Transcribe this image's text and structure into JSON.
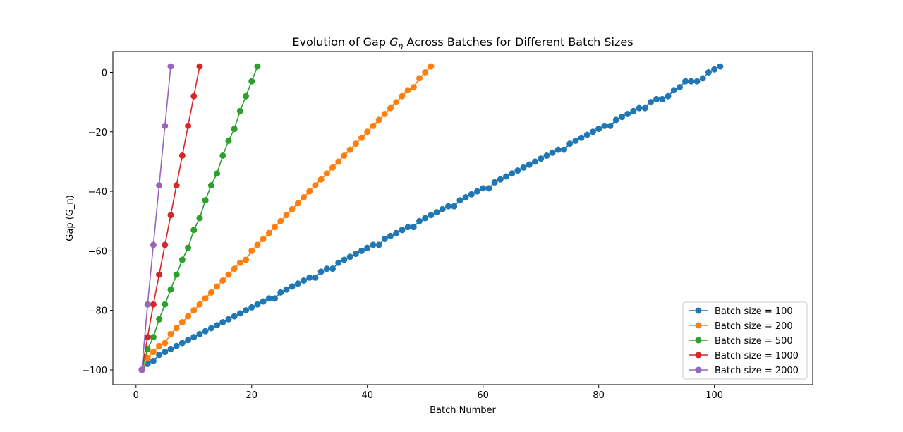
{
  "chart_data": {
    "type": "line",
    "title_prefix": "Evolution of Gap ",
    "title_var": "G",
    "title_sub": "n",
    "title_suffix": " Across Batches for Different Batch Sizes",
    "xlabel": "Batch Number",
    "ylabel": "Gap (G_n)",
    "xlim": [
      -4,
      117
    ],
    "ylim": [
      -105,
      7
    ],
    "xticks": [
      0,
      20,
      40,
      60,
      80,
      100
    ],
    "yticks": [
      0,
      -20,
      -40,
      -60,
      -80,
      -100
    ],
    "xtick_labels": [
      "0",
      "20",
      "40",
      "60",
      "80",
      "100"
    ],
    "ytick_labels": [
      "0",
      "−20",
      "−40",
      "−60",
      "−80",
      "−100"
    ],
    "grid": false,
    "legend_position": "lower-right",
    "series": [
      {
        "name": "Batch size = 100",
        "color": "#1f77b4",
        "x": [
          1,
          2,
          3,
          4,
          5,
          6,
          7,
          8,
          9,
          10,
          11,
          12,
          13,
          14,
          15,
          16,
          17,
          18,
          19,
          20,
          21,
          22,
          23,
          24,
          25,
          26,
          27,
          28,
          29,
          30,
          31,
          32,
          33,
          34,
          35,
          36,
          37,
          38,
          39,
          40,
          41,
          42,
          43,
          44,
          45,
          46,
          47,
          48,
          49,
          50,
          51,
          52,
          53,
          54,
          55,
          56,
          57,
          58,
          59,
          60,
          61,
          62,
          63,
          64,
          65,
          66,
          67,
          68,
          69,
          70,
          71,
          72,
          73,
          74,
          75,
          76,
          77,
          78,
          79,
          80,
          81,
          82,
          83,
          84,
          85,
          86,
          87,
          88,
          89,
          90,
          91,
          92,
          93,
          94,
          95,
          96,
          97,
          98,
          99,
          100,
          101
        ],
        "y": [
          -100,
          -98,
          -97,
          -95,
          -94,
          -93,
          -92,
          -91,
          -90,
          -89,
          -88,
          -87,
          -86,
          -85,
          -84,
          -83,
          -82,
          -81,
          -80,
          -79,
          -78,
          -77,
          -76,
          -76,
          -74,
          -73,
          -72,
          -71,
          -70,
          -69,
          -69,
          -67,
          -66,
          -66,
          -64,
          -63,
          -62,
          -61,
          -60,
          -59,
          -58,
          -58,
          -56,
          -55,
          -54,
          -53,
          -52,
          -52,
          -50,
          -49,
          -48,
          -47,
          -46,
          -45,
          -45,
          -43,
          -42,
          -41,
          -40,
          -39,
          -39,
          -37,
          -36,
          -35,
          -34,
          -33,
          -32,
          -31,
          -30,
          -29,
          -28,
          -27,
          -26,
          -26,
          -24,
          -23,
          -22,
          -21,
          -20,
          -19,
          -18,
          -18,
          -16,
          -15,
          -14,
          -13,
          -12,
          -12,
          -10,
          -9,
          -9,
          -8,
          -6,
          -5,
          -3,
          -3,
          -3,
          -2,
          0,
          1,
          2
        ]
      },
      {
        "name": "Batch size = 200",
        "color": "#ff7f0e",
        "x": [
          1,
          2,
          3,
          4,
          5,
          6,
          7,
          8,
          9,
          10,
          11,
          12,
          13,
          14,
          15,
          16,
          17,
          18,
          19,
          20,
          21,
          22,
          23,
          24,
          25,
          26,
          27,
          28,
          29,
          30,
          31,
          32,
          33,
          34,
          35,
          36,
          37,
          38,
          39,
          40,
          41,
          42,
          43,
          44,
          45,
          46,
          47,
          48,
          49,
          50,
          51
        ],
        "y": [
          -100,
          -96,
          -94,
          -92,
          -91,
          -88,
          -86,
          -84,
          -82,
          -80,
          -78,
          -76,
          -74,
          -72,
          -70,
          -68,
          -66,
          -64,
          -63,
          -60,
          -58,
          -56,
          -54,
          -52,
          -50,
          -48,
          -46,
          -44,
          -42,
          -40,
          -38,
          -36,
          -34,
          -32,
          -30,
          -28,
          -26,
          -24,
          -22,
          -20,
          -18,
          -16,
          -14,
          -12,
          -10,
          -8,
          -6,
          -5,
          -2,
          0,
          2
        ]
      },
      {
        "name": "Batch size = 500",
        "color": "#2ca02c",
        "x": [
          1,
          2,
          3,
          4,
          5,
          6,
          7,
          8,
          9,
          10,
          11,
          12,
          13,
          14,
          15,
          16,
          17,
          18,
          19,
          20,
          21
        ],
        "y": [
          -100,
          -93,
          -89,
          -83,
          -78,
          -73,
          -68,
          -63,
          -59,
          -53,
          -49,
          -43,
          -38,
          -34,
          -28,
          -23,
          -19,
          -13,
          -8,
          -3,
          2
        ]
      },
      {
        "name": "Batch size = 1000",
        "color": "#d62728",
        "x": [
          1,
          2,
          3,
          4,
          5,
          6,
          7,
          8,
          9,
          10,
          11
        ],
        "y": [
          -100,
          -89,
          -78,
          -68,
          -58,
          -48,
          -38,
          -28,
          -18,
          -8,
          2
        ]
      },
      {
        "name": "Batch size = 2000",
        "color": "#9467bd",
        "x": [
          1,
          2,
          3,
          4,
          5,
          6
        ],
        "y": [
          -100,
          -78,
          -58,
          -38,
          -18,
          2
        ]
      }
    ]
  }
}
